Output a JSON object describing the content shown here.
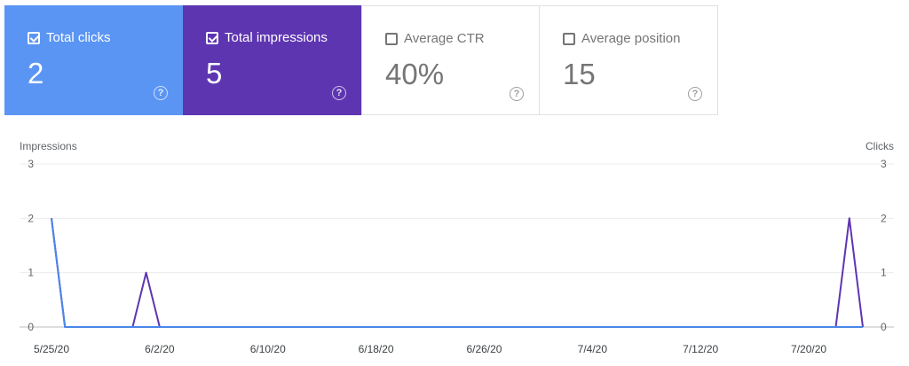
{
  "metrics": [
    {
      "label": "Total clicks",
      "value": "2",
      "checked": true,
      "color": "#5b95f4"
    },
    {
      "label": "Total impressions",
      "value": "5",
      "checked": true,
      "color": "#5e35b1"
    },
    {
      "label": "Average CTR",
      "value": "40%",
      "checked": false,
      "color": "#ffffff"
    },
    {
      "label": "Average position",
      "value": "15",
      "checked": false,
      "color": "#ffffff"
    }
  ],
  "help_glyph": "?",
  "chart_data": {
    "type": "line",
    "y_left_label": "Impressions",
    "y_right_label": "Clicks",
    "ylim": [
      0,
      3
    ],
    "yticks": [
      0,
      1,
      2,
      3
    ],
    "x_tick_labels": [
      "5/25/20",
      "6/2/20",
      "6/10/20",
      "6/18/20",
      "6/26/20",
      "7/4/20",
      "7/12/20",
      "7/20/20"
    ],
    "x_tick_day_index": [
      0,
      8,
      16,
      24,
      32,
      40,
      48,
      56
    ],
    "x_day_count": 61,
    "series": [
      {
        "name": "Impressions",
        "axis": "left",
        "color": "#5e35b1",
        "values": [
          2,
          0,
          0,
          0,
          0,
          0,
          0,
          1,
          0,
          0,
          0,
          0,
          0,
          0,
          0,
          0,
          0,
          0,
          0,
          0,
          0,
          0,
          0,
          0,
          0,
          0,
          0,
          0,
          0,
          0,
          0,
          0,
          0,
          0,
          0,
          0,
          0,
          0,
          0,
          0,
          0,
          0,
          0,
          0,
          0,
          0,
          0,
          0,
          0,
          0,
          0,
          0,
          0,
          0,
          0,
          0,
          0,
          0,
          0,
          2,
          0
        ]
      },
      {
        "name": "Clicks",
        "axis": "right",
        "color": "#4a86e8",
        "values": [
          2,
          0,
          0,
          0,
          0,
          0,
          0,
          0,
          0,
          0,
          0,
          0,
          0,
          0,
          0,
          0,
          0,
          0,
          0,
          0,
          0,
          0,
          0,
          0,
          0,
          0,
          0,
          0,
          0,
          0,
          0,
          0,
          0,
          0,
          0,
          0,
          0,
          0,
          0,
          0,
          0,
          0,
          0,
          0,
          0,
          0,
          0,
          0,
          0,
          0,
          0,
          0,
          0,
          0,
          0,
          0,
          0,
          0,
          0,
          0,
          0
        ]
      }
    ],
    "grid": true
  }
}
